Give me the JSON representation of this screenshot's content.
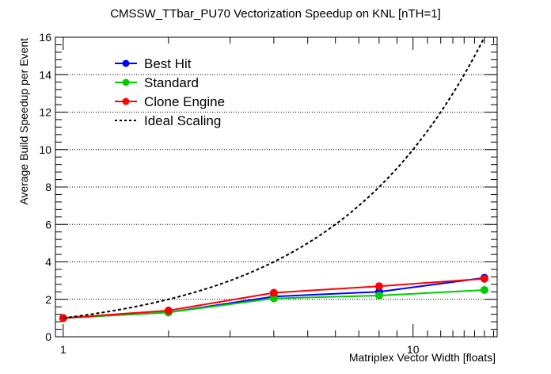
{
  "chart_data": {
    "type": "line",
    "title": "CMSSW_TTbar_PU70 Vectorization Speedup on KNL [nTH=1]",
    "xlabel": "Matriplex Vector Width [floats]",
    "ylabel": "Average Build Speedup per Event",
    "x_scale": "log",
    "xlim": [
      0.95,
      17.4
    ],
    "ylim": [
      0,
      16
    ],
    "x_tick_labels": [
      "1",
      "10"
    ],
    "y_ticks": [
      0,
      2,
      4,
      6,
      8,
      10,
      12,
      14,
      16
    ],
    "grid": "horizontal dotted",
    "legend_position": "top-left",
    "series": [
      {
        "name": "Best Hit",
        "color": "#0000ff",
        "x": [
          1,
          2,
          4,
          8,
          16
        ],
        "y": [
          1.0,
          1.3,
          2.15,
          2.4,
          3.15
        ],
        "style": "solid",
        "marker": "circle"
      },
      {
        "name": "Standard",
        "color": "#00cc00",
        "x": [
          1,
          2,
          4,
          8,
          16
        ],
        "y": [
          1.0,
          1.3,
          2.05,
          2.2,
          2.5
        ],
        "style": "solid",
        "marker": "circle"
      },
      {
        "name": "Clone Engine",
        "color": "#ff0000",
        "x": [
          1,
          2,
          4,
          8,
          16
        ],
        "y": [
          1.0,
          1.4,
          2.35,
          2.7,
          3.1
        ],
        "style": "solid",
        "marker": "circle"
      },
      {
        "name": "Ideal Scaling",
        "color": "#000000",
        "x": [
          1,
          2,
          4,
          8,
          16
        ],
        "y": [
          1,
          2,
          4,
          8,
          16
        ],
        "style": "dashed",
        "marker": "none"
      }
    ]
  }
}
